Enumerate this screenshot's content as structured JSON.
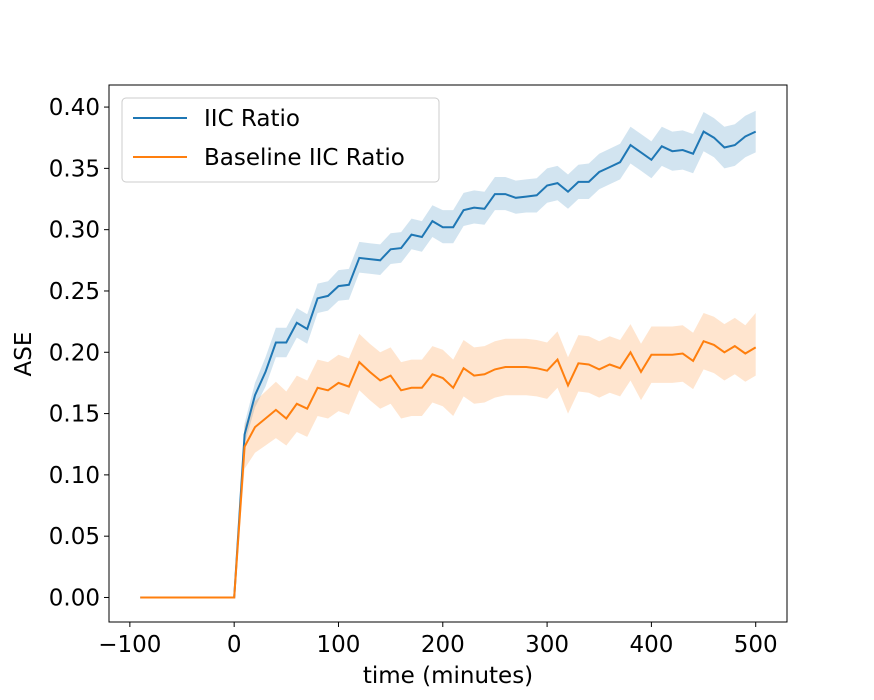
{
  "chart_data": {
    "type": "line",
    "xlabel": "time (minutes)",
    "ylabel": "ASE",
    "xlim": [
      -120,
      530
    ],
    "ylim": [
      -0.02,
      0.418
    ],
    "xticks": [
      -100,
      0,
      100,
      200,
      300,
      400,
      500
    ],
    "xtick_labels": [
      "−100",
      "0",
      "100",
      "200",
      "300",
      "400",
      "500"
    ],
    "yticks": [
      0.0,
      0.05,
      0.1,
      0.15,
      0.2,
      0.25,
      0.3,
      0.35,
      0.4
    ],
    "ytick_labels": [
      "0.00",
      "0.05",
      "0.10",
      "0.15",
      "0.20",
      "0.25",
      "0.30",
      "0.35",
      "0.40"
    ],
    "grid": false,
    "legend_position": "top-left",
    "x": [
      -90,
      0,
      10,
      20,
      30,
      40,
      50,
      60,
      70,
      80,
      90,
      100,
      110,
      120,
      130,
      140,
      150,
      160,
      170,
      180,
      190,
      200,
      210,
      220,
      230,
      240,
      250,
      260,
      270,
      280,
      290,
      300,
      310,
      320,
      330,
      340,
      350,
      360,
      370,
      380,
      390,
      400,
      410,
      420,
      430,
      440,
      450,
      460,
      470,
      480,
      490,
      500
    ],
    "series": [
      {
        "name": "IIC Ratio",
        "color": "#1f77b4",
        "values": [
          0.0,
          0.0,
          0.133,
          0.165,
          0.184,
          0.208,
          0.208,
          0.224,
          0.219,
          0.244,
          0.246,
          0.254,
          0.255,
          0.277,
          0.276,
          0.275,
          0.284,
          0.285,
          0.296,
          0.294,
          0.307,
          0.302,
          0.302,
          0.316,
          0.318,
          0.317,
          0.329,
          0.329,
          0.326,
          0.327,
          0.328,
          0.336,
          0.338,
          0.331,
          0.339,
          0.339,
          0.347,
          0.351,
          0.355,
          0.369,
          0.363,
          0.357,
          0.368,
          0.364,
          0.365,
          0.362,
          0.38,
          0.375,
          0.367,
          0.369,
          0.376,
          0.38
        ],
        "lower": [
          0.0,
          0.0,
          0.125,
          0.155,
          0.172,
          0.196,
          0.196,
          0.212,
          0.207,
          0.232,
          0.234,
          0.242,
          0.243,
          0.265,
          0.264,
          0.263,
          0.272,
          0.273,
          0.284,
          0.282,
          0.294,
          0.289,
          0.289,
          0.303,
          0.305,
          0.304,
          0.316,
          0.316,
          0.313,
          0.314,
          0.314,
          0.322,
          0.324,
          0.317,
          0.325,
          0.325,
          0.333,
          0.337,
          0.341,
          0.354,
          0.348,
          0.342,
          0.352,
          0.348,
          0.349,
          0.346,
          0.364,
          0.359,
          0.35,
          0.352,
          0.359,
          0.363
        ],
        "upper": [
          0.0,
          0.0,
          0.142,
          0.175,
          0.196,
          0.22,
          0.22,
          0.236,
          0.231,
          0.256,
          0.258,
          0.267,
          0.268,
          0.29,
          0.289,
          0.288,
          0.297,
          0.298,
          0.309,
          0.307,
          0.32,
          0.316,
          0.316,
          0.33,
          0.332,
          0.331,
          0.343,
          0.343,
          0.34,
          0.341,
          0.342,
          0.35,
          0.352,
          0.345,
          0.353,
          0.354,
          0.362,
          0.366,
          0.37,
          0.384,
          0.378,
          0.372,
          0.384,
          0.38,
          0.381,
          0.378,
          0.396,
          0.391,
          0.384,
          0.386,
          0.393,
          0.397
        ]
      },
      {
        "name": "Baseline IIC Ratio",
        "color": "#ff7f0e",
        "values": [
          0.0,
          0.0,
          0.123,
          0.139,
          0.146,
          0.153,
          0.146,
          0.158,
          0.154,
          0.171,
          0.169,
          0.175,
          0.172,
          0.192,
          0.184,
          0.177,
          0.181,
          0.169,
          0.171,
          0.171,
          0.182,
          0.179,
          0.171,
          0.187,
          0.181,
          0.182,
          0.186,
          0.188,
          0.188,
          0.188,
          0.187,
          0.185,
          0.194,
          0.173,
          0.191,
          0.19,
          0.186,
          0.19,
          0.187,
          0.2,
          0.184,
          0.198,
          0.198,
          0.198,
          0.199,
          0.193,
          0.209,
          0.206,
          0.2,
          0.205,
          0.199,
          0.204
        ],
        "lower": [
          0.0,
          0.0,
          0.105,
          0.118,
          0.124,
          0.13,
          0.124,
          0.135,
          0.131,
          0.148,
          0.146,
          0.152,
          0.149,
          0.169,
          0.161,
          0.154,
          0.158,
          0.146,
          0.148,
          0.148,
          0.159,
          0.156,
          0.148,
          0.164,
          0.158,
          0.159,
          0.163,
          0.165,
          0.165,
          0.165,
          0.164,
          0.162,
          0.171,
          0.15,
          0.168,
          0.167,
          0.163,
          0.167,
          0.164,
          0.177,
          0.161,
          0.175,
          0.175,
          0.175,
          0.176,
          0.17,
          0.186,
          0.183,
          0.177,
          0.182,
          0.176,
          0.181
        ],
        "upper": [
          0.0,
          0.0,
          0.14,
          0.16,
          0.168,
          0.176,
          0.168,
          0.181,
          0.177,
          0.194,
          0.192,
          0.198,
          0.195,
          0.215,
          0.207,
          0.2,
          0.204,
          0.192,
          0.194,
          0.194,
          0.205,
          0.202,
          0.194,
          0.21,
          0.204,
          0.205,
          0.209,
          0.211,
          0.211,
          0.211,
          0.21,
          0.208,
          0.217,
          0.196,
          0.214,
          0.213,
          0.209,
          0.213,
          0.21,
          0.223,
          0.207,
          0.221,
          0.221,
          0.221,
          0.222,
          0.216,
          0.232,
          0.229,
          0.223,
          0.228,
          0.222,
          0.232
        ]
      }
    ]
  }
}
